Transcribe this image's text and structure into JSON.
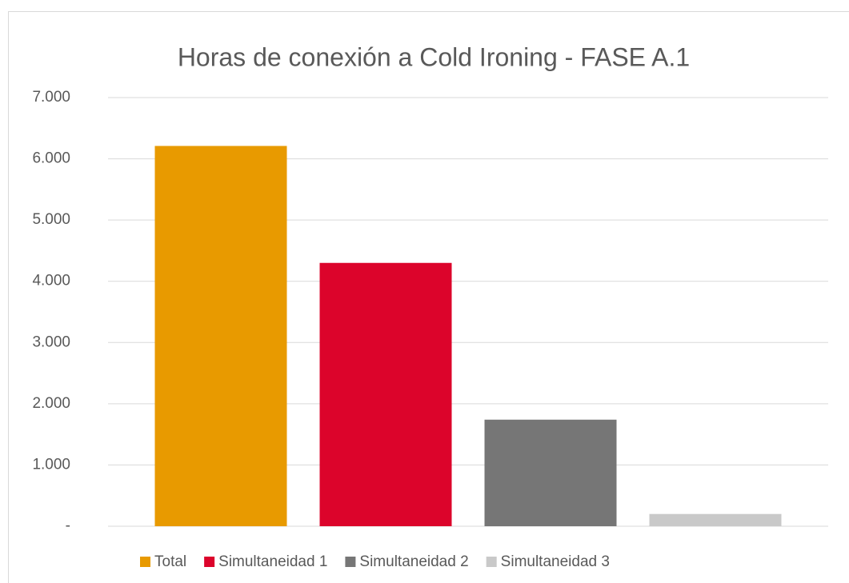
{
  "chart_data": {
    "type": "bar",
    "title": "Horas de conexión a Cold Ironing - FASE A.1",
    "categories": [
      null
    ],
    "series": [
      {
        "name": "Total",
        "color": "#E89A00",
        "values": [
          6210
        ]
      },
      {
        "name": "Simultaneidad 1",
        "color": "#DC042B",
        "values": [
          4300
        ]
      },
      {
        "name": "Simultaneidad 2",
        "color": "#767676",
        "values": [
          1740
        ]
      },
      {
        "name": "Simultaneidad 3",
        "color": "#C9C9C9",
        "values": [
          200
        ]
      }
    ],
    "ylim": [
      0,
      7000
    ],
    "yticks": [
      {
        "value": 0,
        "label": "-"
      },
      {
        "value": 1000,
        "label": "1.000"
      },
      {
        "value": 2000,
        "label": "2.000"
      },
      {
        "value": 3000,
        "label": "3.000"
      },
      {
        "value": 4000,
        "label": "4.000"
      },
      {
        "value": 5000,
        "label": "5.000"
      },
      {
        "value": 6000,
        "label": "6.000"
      },
      {
        "value": 7000,
        "label": "7.000"
      }
    ],
    "grid": true,
    "legend": "bottom"
  }
}
